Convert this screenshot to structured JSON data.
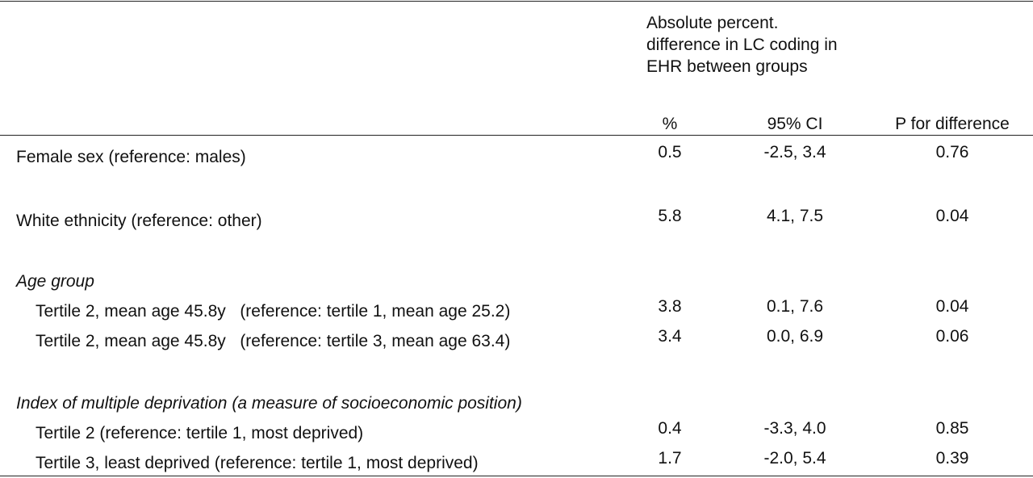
{
  "header": {
    "group_lines": [
      "Absolute percent.",
      "difference in LC coding in",
      "EHR between groups"
    ],
    "col_pct": "%",
    "col_ci": "95% CI",
    "col_p": "P for difference"
  },
  "rows": [
    {
      "label": "Female sex (reference: males)",
      "pct": "0.5",
      "ci": "-2.5, 3.4",
      "p": "0.76"
    },
    {
      "label": "White ethnicity (reference: other)",
      "pct": "5.8",
      "ci": "4.1, 7.5",
      "p": "0.04"
    },
    {
      "label": "Age group"
    },
    {
      "label": "Tertile 2, mean age 45.8y   (reference: tertile 1, mean age 25.2)",
      "pct": "3.8",
      "ci": "0.1, 7.6",
      "p": "0.04"
    },
    {
      "label": "Tertile 2, mean age 45.8y   (reference: tertile 3, mean age 63.4)",
      "pct": "3.4",
      "ci": "0.0, 6.9",
      "p": "0.06"
    },
    {
      "label": "Index of multiple deprivation (a measure of socioeconomic position)"
    },
    {
      "label": "Tertile 2 (reference: tertile 1, most deprived)",
      "pct": "0.4",
      "ci": "-3.3, 4.0",
      "p": "0.85"
    },
    {
      "label": "Tertile 3, least deprived (reference: tertile 1, most deprived)",
      "pct": "1.7",
      "ci": "-2.0, 5.4",
      "p": "0.39"
    }
  ]
}
